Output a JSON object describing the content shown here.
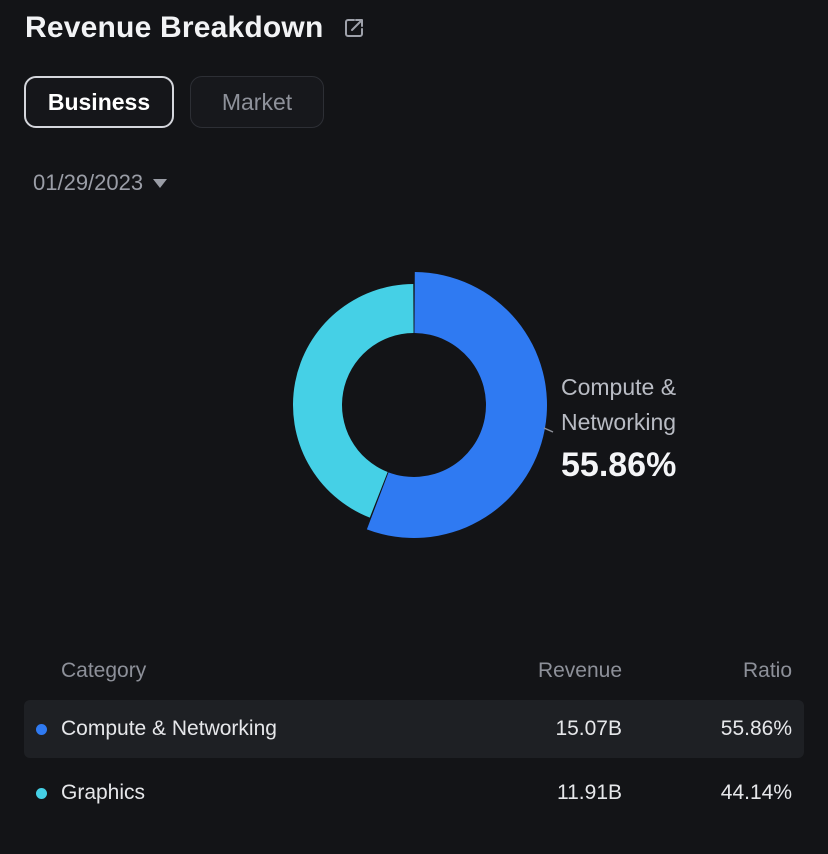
{
  "header": {
    "title": "Revenue Breakdown",
    "share_icon": "share-icon"
  },
  "tabs": [
    {
      "label": "Business",
      "active": true
    },
    {
      "label": "Market",
      "active": false
    }
  ],
  "date_select": {
    "value": "01/29/2023",
    "icon": "caret-down-icon"
  },
  "callout": {
    "label": "Compute & Networking",
    "value": "55.86%"
  },
  "colors": {
    "compute": "#2f7af2",
    "graphics": "#45d0e6"
  },
  "table": {
    "headers": {
      "category": "Category",
      "revenue": "Revenue",
      "ratio": "Ratio"
    },
    "rows": [
      {
        "category": "Compute & Networking",
        "revenue": "15.07B",
        "ratio": "55.86%",
        "color": "#2f7af2"
      },
      {
        "category": "Graphics",
        "revenue": "11.91B",
        "ratio": "44.14%",
        "color": "#45d0e6"
      }
    ]
  },
  "chart_data": {
    "type": "pie",
    "categories": [
      "Compute & Networking",
      "Graphics"
    ],
    "values": [
      55.86,
      44.14
    ],
    "revenue": [
      15.07,
      11.91
    ],
    "colors": [
      "#2f7af2",
      "#45d0e6"
    ],
    "title": "",
    "legend": "none"
  }
}
